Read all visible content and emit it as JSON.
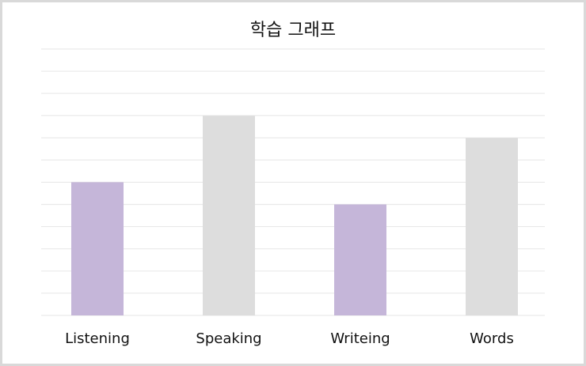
{
  "chart_data": {
    "type": "bar",
    "title": "학습 그래프",
    "categories": [
      "Listening",
      "Speaking",
      "Writeing",
      "Words"
    ],
    "values": [
      6,
      9,
      5,
      8
    ],
    "ylim": [
      0,
      12
    ],
    "grid": true,
    "colors": [
      "#c5b6d9",
      "#dddddd",
      "#c5b6d9",
      "#dddddd"
    ],
    "gridline_color": "#e6e6e6"
  }
}
